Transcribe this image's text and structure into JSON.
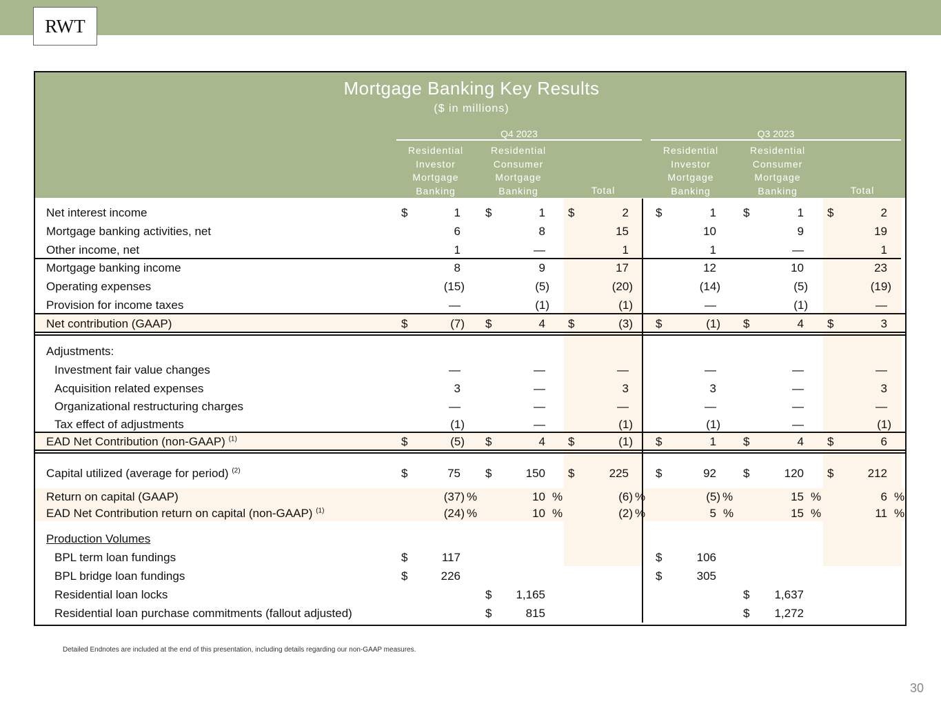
{
  "logo": "RWT",
  "title": "Mortgage Banking Key Results",
  "subtitle": "($ in millions)",
  "periods": [
    "Q4 2023",
    "Q3 2023"
  ],
  "column_headers": [
    "Residential Investor Mortgage Banking",
    "Residential Consumer Mortgage Banking",
    "Total",
    "Residential Investor Mortgage Banking",
    "Residential Consumer Mortgage Banking",
    "Total"
  ],
  "rows": [
    {
      "label": "Net interest income",
      "dollar": [
        true,
        true,
        true,
        true,
        true,
        true
      ],
      "values": [
        "1",
        "1",
        "2",
        "1",
        "1",
        "2"
      ]
    },
    {
      "label": "Mortgage banking activities, net",
      "values": [
        "6",
        "8",
        "15",
        "10",
        "9",
        "19"
      ]
    },
    {
      "label": "Other income, net",
      "values": [
        "1",
        "—",
        "1",
        "1",
        "—",
        "1"
      ]
    },
    {
      "label": "Mortgage banking income",
      "values": [
        "8",
        "9",
        "17",
        "12",
        "10",
        "23"
      ]
    },
    {
      "label": "Operating expenses",
      "values": [
        "(15)",
        "(5)",
        "(20)",
        "(14)",
        "(5)",
        "(19)"
      ]
    },
    {
      "label": "Provision for income taxes",
      "values": [
        "—",
        "(1)",
        "(1)",
        "—",
        "(1)",
        "—"
      ]
    },
    {
      "label": "Net contribution (GAAP)",
      "dollar": [
        true,
        true,
        true,
        true,
        true,
        true
      ],
      "values": [
        "(7)",
        "4",
        "(3)",
        "(1)",
        "4",
        "3"
      ]
    },
    {
      "label": "Adjustments:",
      "values": []
    },
    {
      "label": "Investment fair value changes",
      "indent": true,
      "values": [
        "—",
        "—",
        "—",
        "—",
        "—",
        "—"
      ]
    },
    {
      "label": "Acquisition related expenses",
      "indent": true,
      "values": [
        "3",
        "—",
        "3",
        "3",
        "—",
        "3"
      ]
    },
    {
      "label": "Organizational restructuring charges",
      "indent": true,
      "values": [
        "—",
        "—",
        "—",
        "—",
        "—",
        "—"
      ]
    },
    {
      "label": "Tax effect of adjustments",
      "indent": true,
      "values": [
        "(1)",
        "—",
        "(1)",
        "(1)",
        "—",
        "(1)"
      ]
    },
    {
      "label": "EAD Net Contribution (non-GAAP)",
      "note": "(1)",
      "dollar": [
        true,
        true,
        true,
        true,
        true,
        true
      ],
      "values": [
        "(5)",
        "4",
        "(1)",
        "1",
        "4",
        "6"
      ]
    },
    {
      "label": "Capital utilized (average for period)",
      "note": "(2)",
      "dollar": [
        true,
        true,
        true,
        true,
        true,
        true
      ],
      "values": [
        "75",
        "150",
        "225",
        "92",
        "120",
        "212"
      ]
    },
    {
      "label": "Return on capital (GAAP)",
      "percent": true,
      "values": [
        "(37)",
        "10",
        "(6)",
        "(5)",
        "15",
        "6"
      ]
    },
    {
      "label": "EAD Net Contribution return on capital (non-GAAP)",
      "note": "(1)",
      "percent": true,
      "values": [
        "(24)",
        "10",
        "(2)",
        "5",
        "15",
        "11"
      ]
    },
    {
      "label": "Production Volumes",
      "underline": true,
      "values": []
    },
    {
      "label": "BPL term loan fundings",
      "indent": true,
      "dollar": [
        true,
        false,
        false,
        true,
        false,
        false
      ],
      "values": [
        "117",
        "",
        "",
        "106",
        "",
        ""
      ]
    },
    {
      "label": "BPL bridge loan fundings",
      "indent": true,
      "dollar": [
        true,
        false,
        false,
        true,
        false,
        false
      ],
      "values": [
        "226",
        "",
        "",
        "305",
        "",
        ""
      ]
    },
    {
      "label": "Residential loan locks",
      "indent": true,
      "dollar": [
        false,
        true,
        false,
        false,
        true,
        false
      ],
      "values": [
        "",
        "1,165",
        "",
        "",
        "1,637",
        ""
      ]
    },
    {
      "label": "Residential loan purchase commitments (fallout adjusted)",
      "indent": true,
      "dollar": [
        false,
        true,
        false,
        false,
        true,
        false
      ],
      "values": [
        "",
        "815",
        "",
        "",
        "1,272",
        ""
      ]
    }
  ],
  "currency_symbol": "$",
  "percent_symbol": "%",
  "footnote": "Detailed Endnotes are included at the end of this presentation, including details regarding our non-GAAP measures.",
  "page_number": "30"
}
